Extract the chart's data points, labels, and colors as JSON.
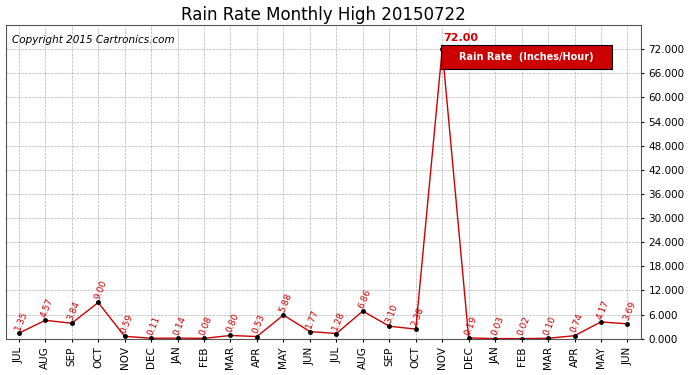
{
  "title": "Rain Rate Monthly High 20150722",
  "copyright": "Copyright 2015 Cartronics.com",
  "legend_label": "Rain Rate  (Inches/Hour)",
  "categories": [
    "JUL",
    "AUG",
    "SEP",
    "OCT",
    "NOV",
    "DEC",
    "JAN",
    "FEB",
    "MAR",
    "APR",
    "MAY",
    "JUN",
    "JUL",
    "AUG",
    "SEP",
    "OCT",
    "NOV",
    "DEC",
    "JAN",
    "FEB",
    "MAR",
    "APR",
    "MAY",
    "JUN"
  ],
  "values": [
    1.35,
    4.57,
    3.84,
    9.0,
    0.59,
    0.11,
    0.14,
    0.08,
    0.8,
    0.53,
    5.88,
    1.77,
    1.28,
    6.86,
    3.1,
    2.38,
    72.0,
    0.19,
    0.03,
    0.02,
    0.1,
    0.74,
    4.17,
    3.69
  ],
  "annotations": [
    "1.35",
    "4.57",
    "3.84",
    "9.00",
    "0.59",
    "0.11",
    "0.14",
    "0.08",
    "0.80",
    "0.53",
    "5.88",
    "1.77",
    "1.28",
    "6.86",
    "3.10",
    "2.38",
    "72.00",
    "0.19",
    "0.03",
    "0.02",
    "0.10",
    "0.74",
    "4.17",
    "3.69"
  ],
  "ylim": [
    0,
    78
  ],
  "ytick_vals": [
    0,
    6,
    12,
    18,
    24,
    30,
    36,
    42,
    48,
    54,
    60,
    66,
    72
  ],
  "ytick_labels": [
    "0.000",
    "6.000",
    "12.000",
    "18.000",
    "24.000",
    "30.000",
    "36.000",
    "42.000",
    "48.000",
    "54.000",
    "60.000",
    "66.000",
    "72.000"
  ],
  "line_color": "#cc0000",
  "marker_color": "#000000",
  "annotation_color": "#cc0000",
  "background_color": "#ffffff",
  "grid_color": "#aaaaaa",
  "title_color": "#000000",
  "copyright_color": "#000000",
  "legend_bg": "#cc0000",
  "legend_text_color": "#ffffff",
  "title_fontsize": 12,
  "copyright_fontsize": 7.5,
  "axis_label_fontsize": 7.5,
  "annotation_fontsize": 6.5,
  "peak_label": "72.00",
  "peak_index": 16
}
